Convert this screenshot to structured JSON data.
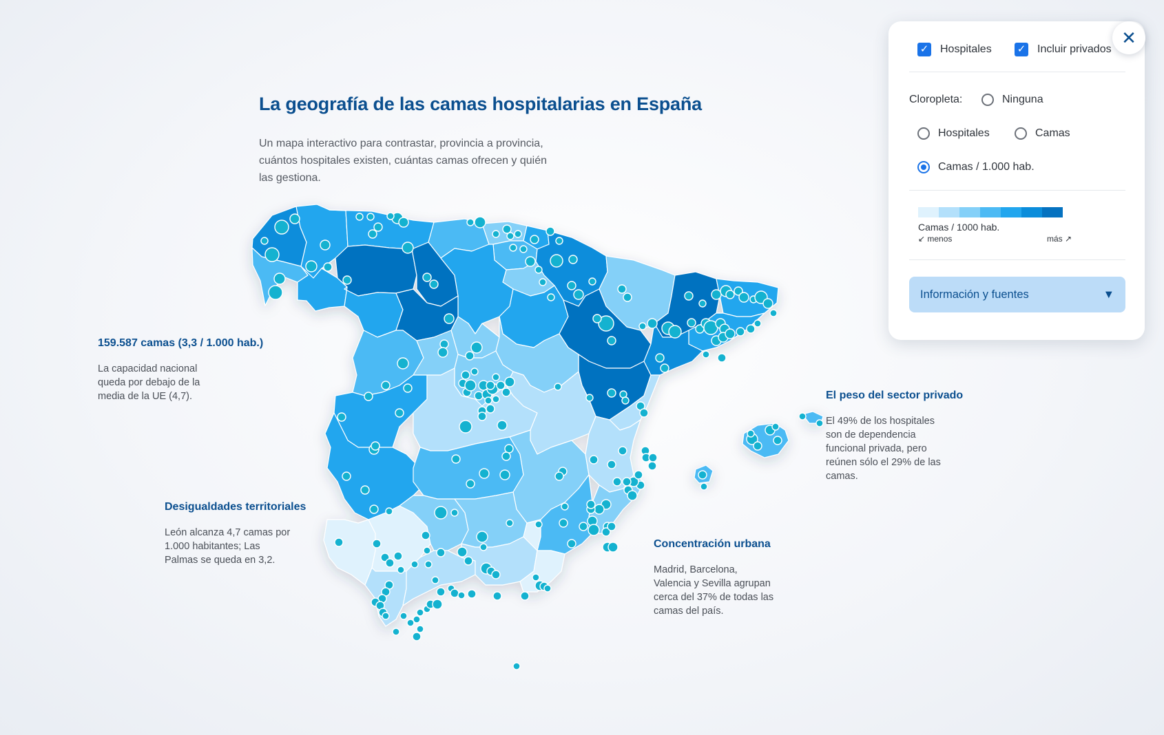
{
  "header": {
    "title": "La geografía de las camas hospitalarias en España",
    "subtitle": "Un mapa interactivo para contrastar, provincia a provincia, cuántos hospitales existen, cuántas camas ofrecen y quién las gestiona."
  },
  "annotations": {
    "national": {
      "title": "159.587 camas (3,3 / 1.000 hab.)",
      "text": "La capacidad nacional queda por debajo de la media de la UE (4,7)."
    },
    "territorial": {
      "title": "Desigualdades territoriales",
      "text": "León alcanza 4,7 camas por 1.000 habitantes; Las Palmas se queda en 3,2."
    },
    "urban": {
      "title": "Concentración urbana",
      "text": "Madrid, Barcelona, Valencia y Sevilla agrupan cerca del 37% de todas las camas del país."
    },
    "private": {
      "title": "El peso del sector privado",
      "text": "El 49% de los hospitales son de dependencia funcional privada, pero reúnen sólo el 29% de las camas."
    }
  },
  "controls": {
    "close_icon": "close-icon",
    "hospitals_checkbox": {
      "label": "Hospitales",
      "checked": true
    },
    "private_checkbox": {
      "label": "Incluir privados",
      "checked": true
    },
    "choropleth": {
      "label": "Cloropleta:",
      "options": [
        {
          "label": "Ninguna",
          "selected": false
        },
        {
          "label": "Hospitales",
          "selected": false
        },
        {
          "label": "Camas",
          "selected": false
        },
        {
          "label": "Camas / 1.000 hab.",
          "selected": true
        }
      ]
    },
    "legend": {
      "colors": [
        "#dff2fd",
        "#b3e0fb",
        "#84d0f8",
        "#4cbaf4",
        "#22a6ee",
        "#0b8ddb",
        "#0572c0"
      ],
      "title": "Camas / 1000 hab.",
      "low": "↙ menos",
      "high": "más ↗"
    },
    "info_button": {
      "label": "Información y fuentes",
      "icon": "triangle-down-icon"
    }
  },
  "map_colors": {
    "stroke": "#ffffff",
    "marker_fill": "#00bcd4",
    "marker_stroke": "#ffffff",
    "marker_hospital": "#14b2d0"
  }
}
